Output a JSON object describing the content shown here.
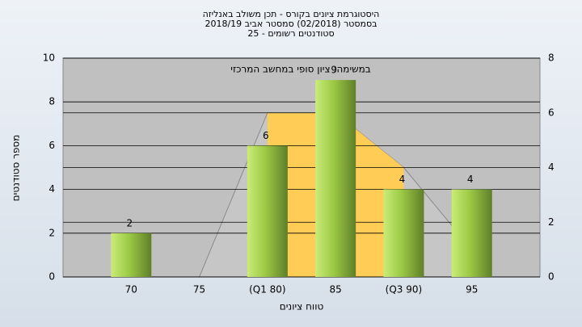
{
  "chart_data": {
    "type": "bar",
    "title": [
      "היסטוגרמת ציונים בקורס - תכן משולב באנליזה",
      "בסמסטר  (02/2018)  סמסטר אביב 2018/19",
      "סטודנטים רשומים - 25"
    ],
    "annotation": "במשימה: ציון סופי במחשב המרכזי",
    "x_label": "טווח ציונים",
    "y_label": "מספר סטודנטים",
    "categories": [
      "70",
      "75",
      "(Q1 80)",
      "85",
      "(Q3 90)",
      "95"
    ],
    "values": [
      2,
      0,
      6,
      9,
      4,
      4
    ],
    "ylim": [
      0,
      10
    ],
    "yticks": [
      0,
      2,
      4,
      6,
      8,
      10
    ],
    "y2lim": [
      0,
      8
    ],
    "y2ticks": [
      0,
      2,
      4,
      6,
      8
    ],
    "areas": [
      {
        "color": "#c6c6c6",
        "axis": "y2",
        "values": [
          null,
          0,
          6,
          6,
          4,
          1
        ]
      },
      {
        "color": "#ffcc55",
        "axis": "y2",
        "values": [
          null,
          null,
          6,
          6,
          4,
          null
        ]
      }
    ],
    "grid": true
  }
}
